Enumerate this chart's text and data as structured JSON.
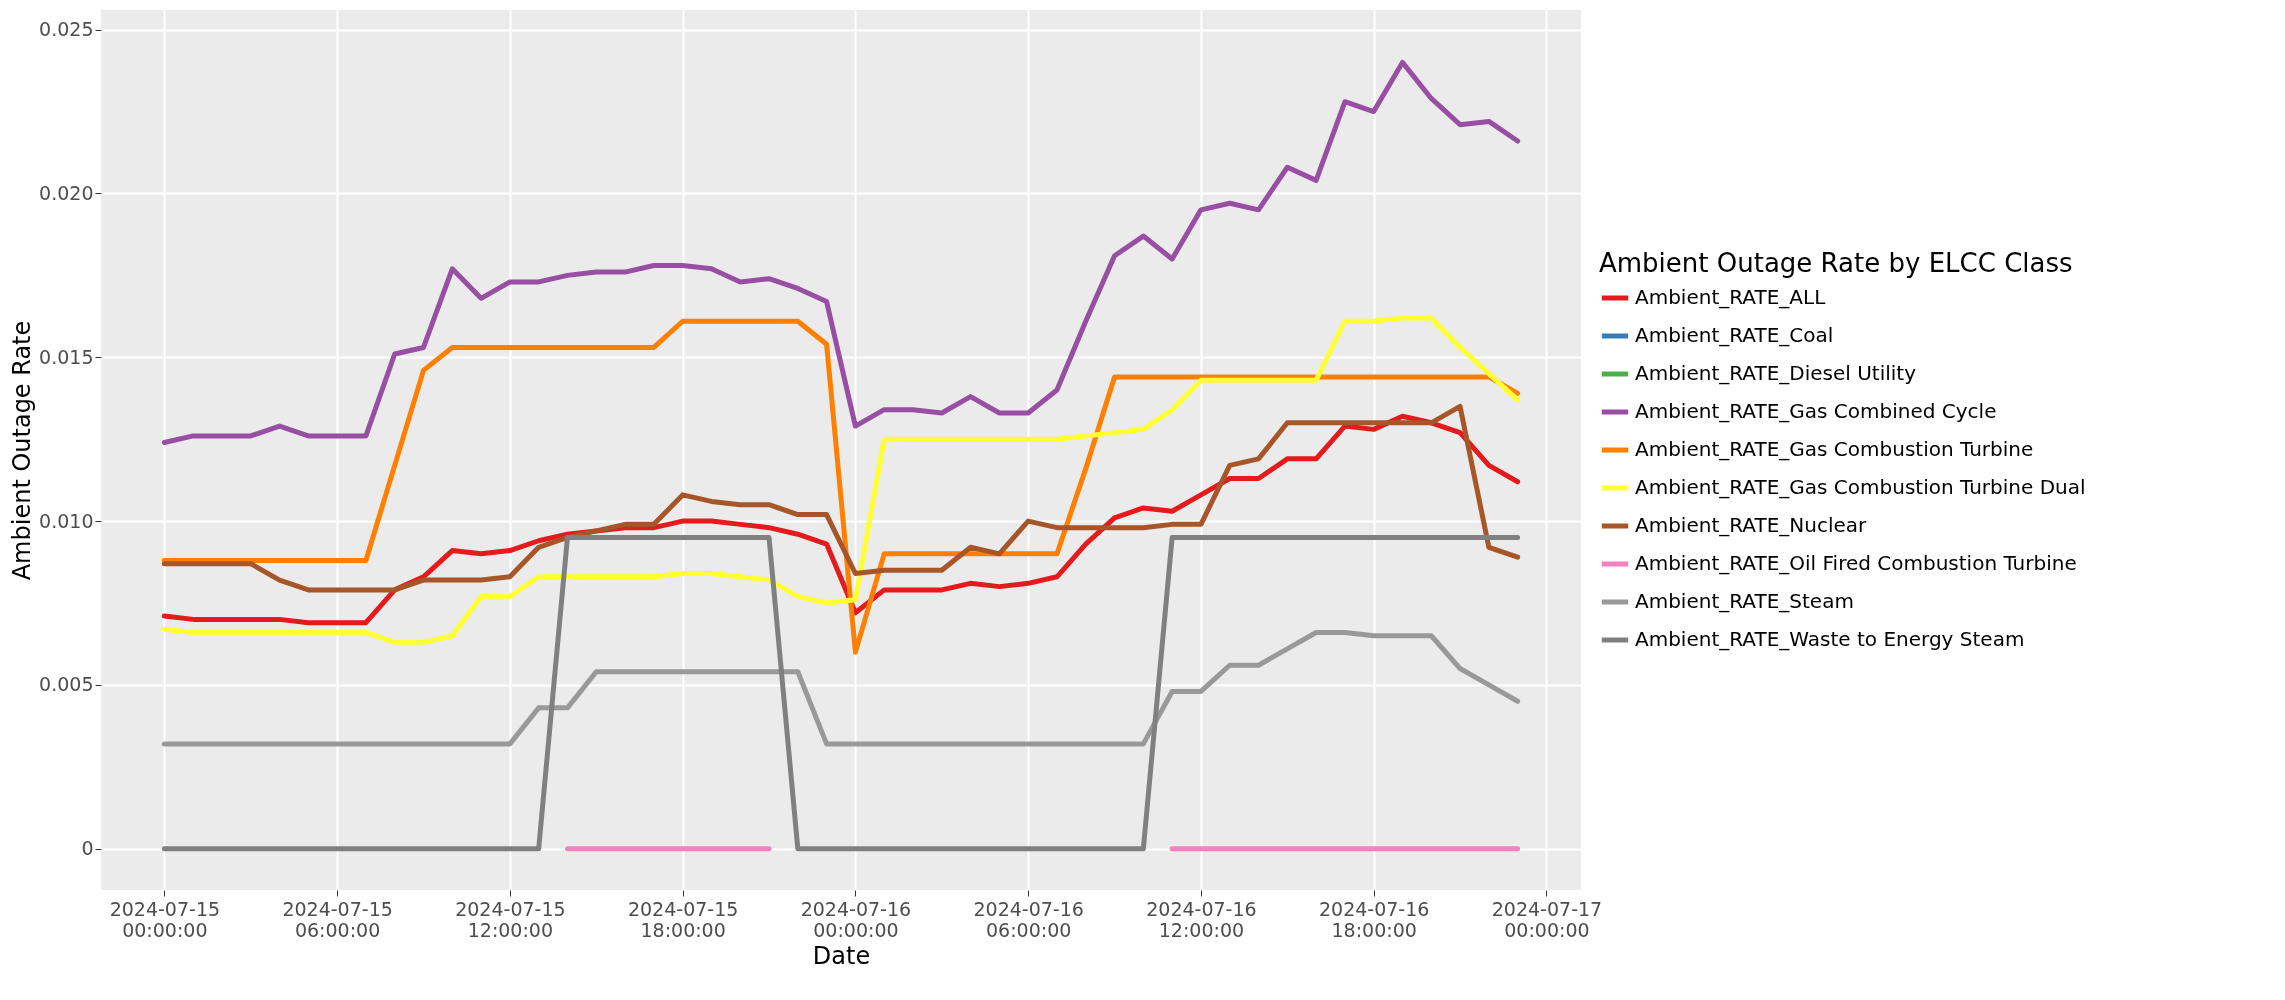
{
  "chart_data": {
    "type": "line",
    "xlabel": "Date",
    "ylabel": "Ambient Outage Rate",
    "legend_title": "Ambient Outage Rate by ELCC Class",
    "legend": "right",
    "grid": true,
    "line_style": "solid",
    "x": [
      "2024-07-15T00:00",
      "2024-07-15T01:00",
      "2024-07-15T02:00",
      "2024-07-15T03:00",
      "2024-07-15T04:00",
      "2024-07-15T05:00",
      "2024-07-15T06:00",
      "2024-07-15T07:00",
      "2024-07-15T08:00",
      "2024-07-15T09:00",
      "2024-07-15T10:00",
      "2024-07-15T11:00",
      "2024-07-15T12:00",
      "2024-07-15T13:00",
      "2024-07-15T14:00",
      "2024-07-15T15:00",
      "2024-07-15T16:00",
      "2024-07-15T17:00",
      "2024-07-15T18:00",
      "2024-07-15T19:00",
      "2024-07-15T20:00",
      "2024-07-15T21:00",
      "2024-07-15T22:00",
      "2024-07-15T23:00",
      "2024-07-16T00:00",
      "2024-07-16T01:00",
      "2024-07-16T02:00",
      "2024-07-16T03:00",
      "2024-07-16T04:00",
      "2024-07-16T05:00",
      "2024-07-16T06:00",
      "2024-07-16T07:00",
      "2024-07-16T08:00",
      "2024-07-16T09:00",
      "2024-07-16T10:00",
      "2024-07-16T11:00",
      "2024-07-16T12:00",
      "2024-07-16T13:00",
      "2024-07-16T14:00",
      "2024-07-16T15:00",
      "2024-07-16T16:00",
      "2024-07-16T17:00",
      "2024-07-16T18:00",
      "2024-07-16T19:00",
      "2024-07-16T20:00",
      "2024-07-16T21:00",
      "2024-07-16T22:00",
      "2024-07-16T23:00"
    ],
    "xlim": [
      "2024-07-14T21:48",
      "2024-07-17T01:12"
    ],
    "xticks": [
      {
        "value": "2024-07-15T00:00",
        "label": "2024-07-15\n00:00:00"
      },
      {
        "value": "2024-07-15T06:00",
        "label": "2024-07-15\n06:00:00"
      },
      {
        "value": "2024-07-15T12:00",
        "label": "2024-07-15\n12:00:00"
      },
      {
        "value": "2024-07-15T18:00",
        "label": "2024-07-15\n18:00:00"
      },
      {
        "value": "2024-07-16T00:00",
        "label": "2024-07-16\n00:00:00"
      },
      {
        "value": "2024-07-16T06:00",
        "label": "2024-07-16\n06:00:00"
      },
      {
        "value": "2024-07-16T12:00",
        "label": "2024-07-16\n12:00:00"
      },
      {
        "value": "2024-07-16T18:00",
        "label": "2024-07-16\n18:00:00"
      },
      {
        "value": "2024-07-17T00:00",
        "label": "2024-07-17\n00:00:00"
      }
    ],
    "ylim": [
      -0.00126,
      0.0256
    ],
    "yticks": [
      {
        "value": 0,
        "label": "0"
      },
      {
        "value": 0.005,
        "label": "0.005"
      },
      {
        "value": 0.01,
        "label": "0.010"
      },
      {
        "value": 0.015,
        "label": "0.015"
      },
      {
        "value": 0.02,
        "label": "0.020"
      },
      {
        "value": 0.025,
        "label": "0.025"
      }
    ],
    "series": [
      {
        "name": "Ambient_RATE_ALL",
        "color": "#e41a1c",
        "values": [
          0.0071,
          0.007,
          0.007,
          0.007,
          0.007,
          0.0069,
          0.0069,
          0.0069,
          0.0079,
          0.0083,
          0.0091,
          0.009,
          0.0091,
          0.0094,
          0.0096,
          0.0097,
          0.0098,
          0.0098,
          0.01,
          0.01,
          0.0099,
          0.0098,
          0.0096,
          0.0093,
          0.0072,
          0.0079,
          0.0079,
          0.0079,
          0.0081,
          0.008,
          0.0081,
          0.0083,
          0.0093,
          0.0101,
          0.0104,
          0.0103,
          0.0108,
          0.0113,
          0.0113,
          0.0119,
          0.0119,
          0.0129,
          0.0128,
          0.0132,
          0.013,
          0.0127,
          0.0117,
          0.0112
        ]
      },
      {
        "name": "Ambient_RATE_Coal",
        "color": "#377eb8",
        "values": [
          null,
          null,
          null,
          null,
          null,
          null,
          null,
          null,
          null,
          null,
          null,
          null,
          null,
          null,
          null,
          null,
          null,
          null,
          null,
          null,
          null,
          null,
          null,
          null,
          null,
          null,
          null,
          null,
          null,
          null,
          null,
          null,
          null,
          null,
          null,
          null,
          null,
          null,
          null,
          null,
          null,
          null,
          null,
          null,
          null,
          null,
          null,
          null
        ]
      },
      {
        "name": "Ambient_RATE_Diesel Utility",
        "color": "#4daf4a",
        "values": [
          null,
          null,
          null,
          null,
          null,
          null,
          null,
          null,
          null,
          null,
          null,
          null,
          null,
          null,
          null,
          null,
          null,
          null,
          null,
          null,
          null,
          null,
          null,
          null,
          null,
          null,
          null,
          null,
          null,
          null,
          null,
          null,
          null,
          null,
          null,
          null,
          null,
          null,
          null,
          null,
          null,
          null,
          null,
          null,
          null,
          null,
          null,
          null
        ]
      },
      {
        "name": "Ambient_RATE_Gas Combined Cycle",
        "color": "#984ea3",
        "values": [
          0.0124,
          0.0126,
          0.0126,
          0.0126,
          0.0129,
          0.0126,
          0.0126,
          0.0126,
          0.0151,
          0.0153,
          0.0177,
          0.0168,
          0.0173,
          0.0173,
          0.0175,
          0.0176,
          0.0176,
          0.0178,
          0.0178,
          0.0177,
          0.0173,
          0.0174,
          0.0171,
          0.0167,
          0.0129,
          0.0134,
          0.0134,
          0.0133,
          0.0138,
          0.0133,
          0.0133,
          0.014,
          0.0161,
          0.0181,
          0.0187,
          0.018,
          0.0195,
          0.0197,
          0.0195,
          0.0208,
          0.0204,
          0.0228,
          0.0225,
          0.024,
          0.0229,
          0.0221,
          0.0222,
          0.0216
        ]
      },
      {
        "name": "Ambient_RATE_Gas Combustion Turbine",
        "color": "#ff7f00",
        "values": [
          0.0088,
          0.0088,
          0.0088,
          0.0088,
          0.0088,
          0.0088,
          0.0088,
          0.0088,
          0.0117,
          0.0146,
          0.0153,
          0.0153,
          0.0153,
          0.0153,
          0.0153,
          0.0153,
          0.0153,
          0.0153,
          0.0161,
          0.0161,
          0.0161,
          0.0161,
          0.0161,
          0.0154,
          0.006,
          0.009,
          0.009,
          0.009,
          0.009,
          0.009,
          0.009,
          0.009,
          0.0116,
          0.0144,
          0.0144,
          0.0144,
          0.0144,
          0.0144,
          0.0144,
          0.0144,
          0.0144,
          0.0144,
          0.0144,
          0.0144,
          0.0144,
          0.0144,
          0.0144,
          0.0139
        ]
      },
      {
        "name": "Ambient_RATE_Gas Combustion Turbine Dual",
        "color": "#ffff33",
        "values": [
          0.0067,
          0.0066,
          0.0066,
          0.0066,
          0.0066,
          0.0066,
          0.0066,
          0.0066,
          0.0063,
          0.0063,
          0.0065,
          0.0077,
          0.0077,
          0.0083,
          0.0083,
          0.0083,
          0.0083,
          0.0083,
          0.0084,
          0.0084,
          0.0083,
          0.0082,
          0.0077,
          0.0075,
          0.0076,
          0.0125,
          0.0125,
          0.0125,
          0.0125,
          0.0125,
          0.0125,
          0.0125,
          0.0126,
          0.0127,
          0.0128,
          0.0134,
          0.0143,
          0.0143,
          0.0143,
          0.0143,
          0.0143,
          0.0161,
          0.0161,
          0.0162,
          0.0162,
          0.0153,
          0.0145,
          0.0137
        ]
      },
      {
        "name": "Ambient_RATE_Nuclear",
        "color": "#a65628",
        "values": [
          0.0087,
          0.0087,
          0.0087,
          0.0087,
          0.0082,
          0.0079,
          0.0079,
          0.0079,
          0.0079,
          0.0082,
          0.0082,
          0.0082,
          0.0083,
          0.0092,
          0.0095,
          0.0097,
          0.0099,
          0.0099,
          0.0108,
          0.0106,
          0.0105,
          0.0105,
          0.0102,
          0.0102,
          0.0084,
          0.0085,
          0.0085,
          0.0085,
          0.0092,
          0.009,
          0.01,
          0.0098,
          0.0098,
          0.0098,
          0.0098,
          0.0099,
          0.0099,
          0.0117,
          0.0119,
          0.013,
          0.013,
          0.013,
          0.013,
          0.013,
          0.013,
          0.0135,
          0.0092,
          0.0089
        ]
      },
      {
        "name": "Ambient_RATE_Oil Fired Combustion Turbine",
        "color": "#f781bf",
        "values": [
          null,
          null,
          null,
          null,
          null,
          null,
          null,
          null,
          null,
          null,
          null,
          null,
          null,
          null,
          0,
          0,
          0,
          0,
          0,
          0,
          0,
          0,
          null,
          null,
          null,
          null,
          null,
          null,
          null,
          null,
          null,
          null,
          null,
          null,
          null,
          0,
          0,
          0,
          0,
          0,
          0,
          0,
          0,
          0,
          0,
          0,
          0,
          0
        ]
      },
      {
        "name": "Ambient_RATE_Steam",
        "color": "#999999",
        "values": [
          0.0032,
          0.0032,
          0.0032,
          0.0032,
          0.0032,
          0.0032,
          0.0032,
          0.0032,
          0.0032,
          0.0032,
          0.0032,
          0.0032,
          0.0032,
          0.0043,
          0.0043,
          0.0054,
          0.0054,
          0.0054,
          0.0054,
          0.0054,
          0.0054,
          0.0054,
          0.0054,
          0.0032,
          0.0032,
          0.0032,
          0.0032,
          0.0032,
          0.0032,
          0.0032,
          0.0032,
          0.0032,
          0.0032,
          0.0032,
          0.0032,
          0.0048,
          0.0048,
          0.0056,
          0.0056,
          0.0061,
          0.0066,
          0.0066,
          0.0065,
          0.0065,
          0.0065,
          0.0055,
          0.005,
          0.0045
        ]
      },
      {
        "name": "Ambient_RATE_Waste to Energy Steam",
        "color": "#808080",
        "values": [
          0,
          0,
          0,
          0,
          0,
          0,
          0,
          0,
          0,
          0,
          0,
          0,
          0,
          0,
          0.0095,
          0.0095,
          0.0095,
          0.0095,
          0.0095,
          0.0095,
          0.0095,
          0.0095,
          0,
          0,
          0,
          0,
          0,
          0,
          0,
          0,
          0,
          0,
          0,
          0,
          0,
          0.0095,
          0.0095,
          0.0095,
          0.0095,
          0.0095,
          0.0095,
          0.0095,
          0.0095,
          0.0095,
          0.0095,
          0.0095,
          0.0095,
          0.0095
        ]
      }
    ]
  }
}
